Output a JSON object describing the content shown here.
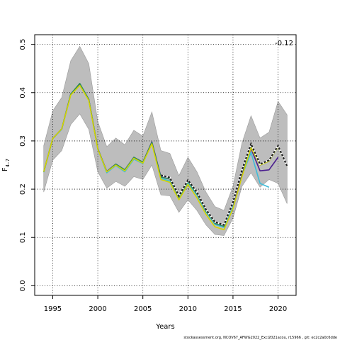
{
  "chart_data": {
    "type": "line",
    "xlabel": "Years",
    "ylabel": "F",
    "ylabel_sub": "4–7",
    "xlim": [
      1993,
      2022
    ],
    "ylim": [
      -0.02,
      0.52
    ],
    "x_ticks": [
      1995,
      2000,
      2005,
      2010,
      2015,
      2020
    ],
    "y_ticks": [
      0.0,
      0.1,
      0.2,
      0.3,
      0.4,
      0.5
    ],
    "y_tick_labels": [
      "0.0",
      "0.1",
      "0.2",
      "0.3",
      "0.4",
      "0.5"
    ],
    "grid": true,
    "corner_label": "-0.12",
    "band": {
      "x": [
        1994,
        1995,
        1996,
        1997,
        1998,
        1999,
        2000,
        2001,
        2002,
        2003,
        2004,
        2005,
        2006,
        2007,
        2008,
        2009,
        2010,
        2011,
        2012,
        2013,
        2014,
        2015,
        2016,
        2017,
        2018,
        2019,
        2020,
        2021
      ],
      "upper": [
        0.29,
        0.362,
        0.39,
        0.466,
        0.496,
        0.46,
        0.34,
        0.288,
        0.306,
        0.292,
        0.322,
        0.31,
        0.36,
        0.28,
        0.274,
        0.228,
        0.266,
        0.236,
        0.194,
        0.164,
        0.156,
        0.206,
        0.296,
        0.352,
        0.306,
        0.318,
        0.382,
        0.354
      ],
      "lower": [
        0.194,
        0.26,
        0.28,
        0.334,
        0.356,
        0.324,
        0.236,
        0.202,
        0.216,
        0.206,
        0.226,
        0.22,
        0.25,
        0.188,
        0.186,
        0.152,
        0.178,
        0.156,
        0.126,
        0.106,
        0.104,
        0.14,
        0.206,
        0.234,
        0.204,
        0.22,
        0.212,
        0.17
      ]
    },
    "series": [
      {
        "color": "#3FBCD8",
        "x": [
          1994,
          1995,
          1996,
          1997,
          1998,
          1999,
          2000,
          2001,
          2002,
          2003,
          2004,
          2005,
          2006,
          2007,
          2008,
          2009,
          2010,
          2011,
          2012,
          2013,
          2014,
          2015,
          2016,
          2017,
          2018,
          2019
        ],
        "y": [
          0.235,
          0.305,
          0.324,
          0.396,
          0.418,
          0.385,
          0.283,
          0.234,
          0.249,
          0.236,
          0.262,
          0.253,
          0.296,
          0.222,
          0.217,
          0.18,
          0.213,
          0.188,
          0.153,
          0.127,
          0.121,
          0.166,
          0.228,
          0.276,
          0.212,
          0.204
        ]
      },
      {
        "color": "#4B1F8F",
        "x": [
          1994,
          1995,
          1996,
          1997,
          1998,
          1999,
          2000,
          2001,
          2002,
          2003,
          2004,
          2005,
          2006,
          2007,
          2008,
          2009,
          2010,
          2011,
          2012,
          2013,
          2014,
          2015,
          2016,
          2017,
          2018,
          2019,
          2020
        ],
        "y": [
          0.236,
          0.305,
          0.325,
          0.397,
          0.418,
          0.386,
          0.284,
          0.237,
          0.252,
          0.24,
          0.266,
          0.256,
          0.298,
          0.226,
          0.221,
          0.184,
          0.217,
          0.192,
          0.157,
          0.131,
          0.125,
          0.17,
          0.232,
          0.284,
          0.238,
          0.24,
          0.266
        ]
      },
      {
        "color": "#2E8B57",
        "x": [
          1994,
          1995,
          1996,
          1997,
          1998,
          1999,
          2000,
          2001,
          2002,
          2003,
          2004,
          2005,
          2006,
          2007,
          2008,
          2009,
          2010,
          2011,
          2012,
          2013,
          2014,
          2015,
          2016,
          2017,
          2018,
          2019,
          2020,
          2021
        ],
        "y": [
          0.236,
          0.305,
          0.325,
          0.397,
          0.419,
          0.386,
          0.284,
          0.236,
          0.252,
          0.24,
          0.266,
          0.256,
          0.297,
          0.225,
          0.221,
          0.183,
          0.216,
          0.19,
          0.155,
          0.129,
          0.123,
          0.172,
          0.236,
          0.288,
          0.25,
          0.258,
          0.288,
          0.248
        ]
      },
      {
        "color": "#D4D400",
        "x": [
          1994,
          1995,
          1996,
          1997,
          1998,
          1999,
          2000,
          2001,
          2002,
          2003,
          2004,
          2005,
          2006,
          2007,
          2008,
          2009,
          2010,
          2011,
          2012,
          2013,
          2014,
          2015,
          2016,
          2017,
          2018,
          2019,
          2020,
          2021
        ],
        "y": [
          0.236,
          0.305,
          0.325,
          0.395,
          0.415,
          0.384,
          0.283,
          0.236,
          0.25,
          0.238,
          0.264,
          0.254,
          0.294,
          0.22,
          0.214,
          0.178,
          0.21,
          0.182,
          0.148,
          0.122,
          0.116,
          0.16,
          0.226,
          0.286,
          0.25,
          0.258,
          0.288,
          0.248
        ]
      },
      {
        "color": "#222222",
        "dashed": true,
        "x": [
          2007,
          2008,
          2009,
          2010,
          2011,
          2012,
          2013,
          2014,
          2015,
          2016,
          2017,
          2018,
          2019,
          2020,
          2021
        ],
        "y": [
          0.229,
          0.224,
          0.186,
          0.219,
          0.194,
          0.158,
          0.132,
          0.126,
          0.173,
          0.24,
          0.294,
          0.252,
          0.26,
          0.29,
          0.248
        ]
      }
    ]
  },
  "footer": "stockassessment.org, NCOV67_AFWG2022_Excl2021acou, r15966 , git: ec2c2a0c6dde"
}
